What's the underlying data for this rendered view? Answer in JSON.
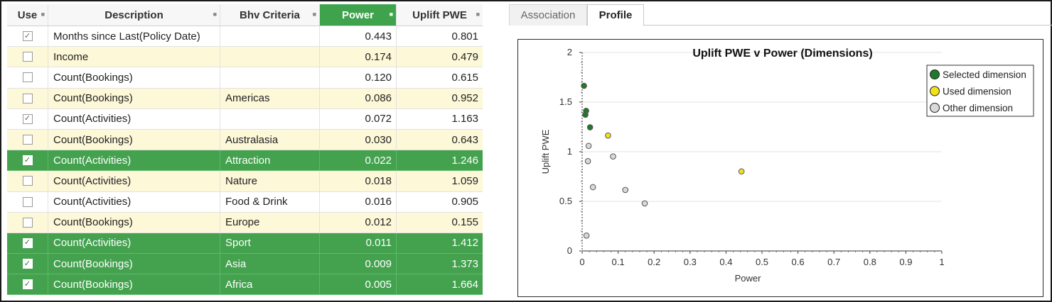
{
  "grid": {
    "columns": [
      {
        "key": "use",
        "label": "Use"
      },
      {
        "key": "description",
        "label": "Description"
      },
      {
        "key": "bhv_criteria",
        "label": "Bhv Criteria"
      },
      {
        "key": "power",
        "label": "Power",
        "active": true
      },
      {
        "key": "uplift",
        "label": "Uplift PWE"
      }
    ],
    "rows": [
      {
        "checked": true,
        "description": "Months since Last(Policy Date)",
        "bhv": "",
        "power": "0.443",
        "uplift": "0.801",
        "style": "white"
      },
      {
        "checked": false,
        "description": "Income",
        "bhv": "",
        "power": "0.174",
        "uplift": "0.479",
        "style": "yellow"
      },
      {
        "checked": false,
        "description": "Count(Bookings)",
        "bhv": "",
        "power": "0.120",
        "uplift": "0.615",
        "style": "white"
      },
      {
        "checked": false,
        "description": "Count(Bookings)",
        "bhv": "Americas",
        "power": "0.086",
        "uplift": "0.952",
        "style": "yellow"
      },
      {
        "checked": true,
        "description": "Count(Activities)",
        "bhv": "",
        "power": "0.072",
        "uplift": "1.163",
        "style": "white"
      },
      {
        "checked": false,
        "description": "Count(Bookings)",
        "bhv": "Australasia",
        "power": "0.030",
        "uplift": "0.643",
        "style": "yellow"
      },
      {
        "checked": true,
        "description": "Count(Activities)",
        "bhv": "Attraction",
        "power": "0.022",
        "uplift": "1.246",
        "style": "green"
      },
      {
        "checked": false,
        "description": "Count(Activities)",
        "bhv": "Nature",
        "power": "0.018",
        "uplift": "1.059",
        "style": "yellow"
      },
      {
        "checked": false,
        "description": "Count(Activities)",
        "bhv": "Food & Drink",
        "power": "0.016",
        "uplift": "0.905",
        "style": "white"
      },
      {
        "checked": false,
        "description": "Count(Bookings)",
        "bhv": "Europe",
        "power": "0.012",
        "uplift": "0.155",
        "style": "yellow"
      },
      {
        "checked": true,
        "description": "Count(Activities)",
        "bhv": "Sport",
        "power": "0.011",
        "uplift": "1.412",
        "style": "green"
      },
      {
        "checked": true,
        "description": "Count(Bookings)",
        "bhv": "Asia",
        "power": "0.009",
        "uplift": "1.373",
        "style": "green"
      },
      {
        "checked": true,
        "description": "Count(Bookings)",
        "bhv": "Africa",
        "power": "0.005",
        "uplift": "1.664",
        "style": "green"
      }
    ],
    "check_glyph": "✓",
    "pin_icon": "pin-icon",
    "colors": {
      "selected_row": "#44a24f",
      "alt_row": "#fdf8d8",
      "active_header": "#3fa34d"
    }
  },
  "tabs": [
    {
      "label": "Association",
      "active": false
    },
    {
      "label": "Profile",
      "active": true
    }
  ],
  "chart_data": {
    "type": "scatter",
    "title": "Uplift PWE v Power (Dimensions)",
    "xlabel": "Power",
    "ylabel": "Uplift PWE",
    "xlim": [
      0,
      1
    ],
    "ylim": [
      0,
      2
    ],
    "xticks": [
      "0",
      "0.1",
      "0.2",
      "0.3",
      "0.4",
      "0.5",
      "0.6",
      "0.7",
      "0.8",
      "0.9",
      "1"
    ],
    "yticks": [
      "0",
      "0.5",
      "1",
      "1.5",
      "2"
    ],
    "grid": true,
    "legend_position": "top-right",
    "series": [
      {
        "name": "Selected dimension",
        "color": "#1e7a28",
        "points": [
          [
            0.022,
            1.246
          ],
          [
            0.011,
            1.412
          ],
          [
            0.009,
            1.373
          ],
          [
            0.005,
            1.664
          ]
        ]
      },
      {
        "name": "Used dimension",
        "color": "#f2e21c",
        "points": [
          [
            0.443,
            0.801
          ],
          [
            0.072,
            1.163
          ]
        ]
      },
      {
        "name": "Other dimension",
        "color": "#d9d9d9",
        "points": [
          [
            0.174,
            0.479
          ],
          [
            0.12,
            0.615
          ],
          [
            0.086,
            0.952
          ],
          [
            0.03,
            0.643
          ],
          [
            0.018,
            1.059
          ],
          [
            0.016,
            0.905
          ],
          [
            0.012,
            0.155
          ]
        ]
      }
    ]
  }
}
